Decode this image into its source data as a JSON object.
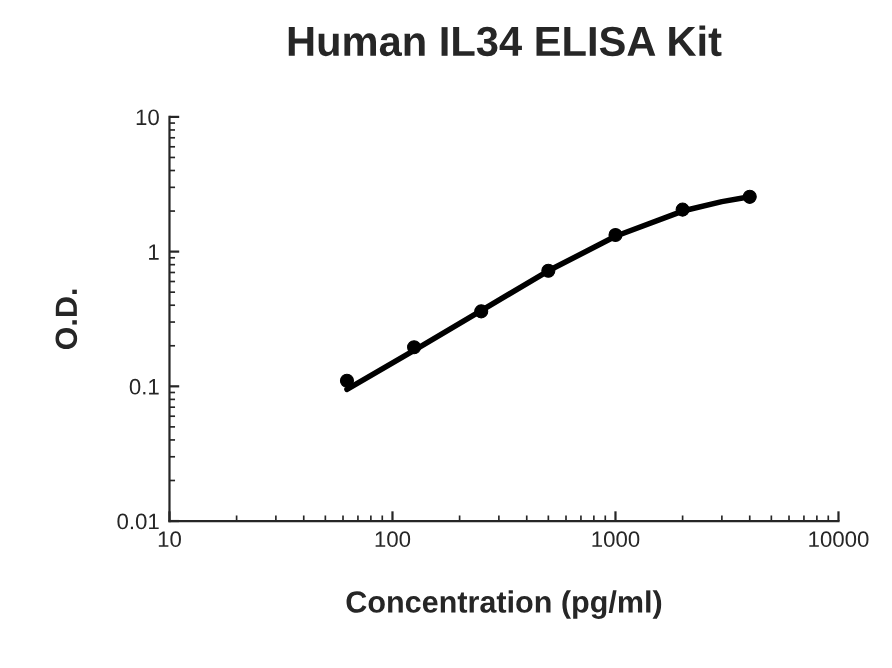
{
  "chart_data": {
    "type": "scatter",
    "title": "Human IL34 ELISA Kit",
    "xlabel": "Concentration (pg/ml)",
    "ylabel": "O.D.",
    "log": "xy",
    "xlim": [
      10,
      10000
    ],
    "ylim": [
      0.01,
      10
    ],
    "xticks": [
      10,
      100,
      1000,
      10000
    ],
    "yticks": [
      0.01,
      0.1,
      1,
      10
    ],
    "grid": false,
    "legend": false,
    "series": [
      {
        "color": "#000000",
        "marker": "circle",
        "x": [
          62.5,
          125,
          250,
          500,
          1000,
          2000,
          4000
        ],
        "values": [
          0.11,
          0.195,
          0.36,
          0.72,
          1.33,
          2.05,
          2.55
        ]
      },
      {
        "type": "line",
        "color": "#000000",
        "marker": "none",
        "line_style": "solid",
        "x": [
          62.5,
          125,
          250,
          500,
          1000,
          2000,
          3000,
          4000
        ],
        "values": [
          0.095,
          0.185,
          0.365,
          0.72,
          1.3,
          2.0,
          2.35,
          2.55
        ]
      }
    ]
  }
}
